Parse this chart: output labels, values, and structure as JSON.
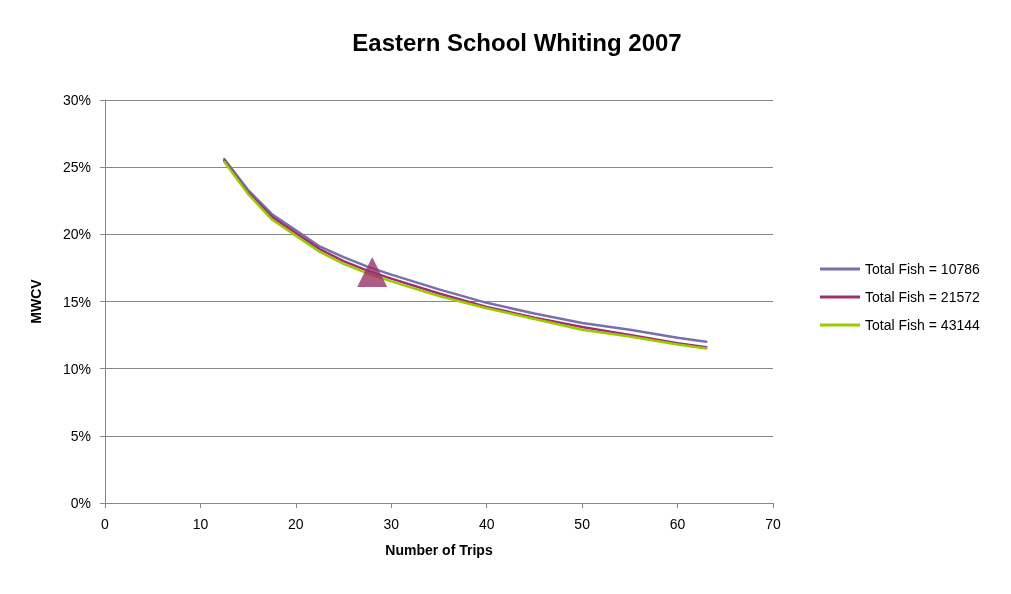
{
  "chart_data": {
    "type": "line",
    "title": "Eastern School Whiting 2007",
    "xlabel": "Number of Trips",
    "ylabel": "MWCV",
    "x": [
      12.5,
      15,
      17.5,
      20,
      22.5,
      25,
      27.5,
      30,
      35,
      40,
      45,
      50,
      55,
      60,
      63
    ],
    "series": [
      {
        "name": "Total Fish = 10786",
        "color": "#7770b0",
        "values": [
          25.6,
          23.3,
          21.5,
          20.3,
          19.1,
          18.3,
          17.6,
          17.0,
          15.9,
          14.9,
          14.1,
          13.4,
          12.9,
          12.3,
          12.0
        ]
      },
      {
        "name": "Total Fish = 21572",
        "color": "#a0306a",
        "values": [
          25.5,
          23.1,
          21.3,
          20.1,
          18.9,
          18.0,
          17.3,
          16.7,
          15.6,
          14.6,
          13.8,
          13.1,
          12.5,
          11.9,
          11.6
        ]
      },
      {
        "name": "Total Fish = 43144",
        "color": "#99cc00",
        "values": [
          25.4,
          23.0,
          21.1,
          19.9,
          18.7,
          17.8,
          17.1,
          16.5,
          15.4,
          14.5,
          13.7,
          12.9,
          12.4,
          11.8,
          11.5
        ]
      },
      {
        "type": "scatter",
        "marker": "triangle",
        "color": "#993366",
        "x": [
          28
        ],
        "values": [
          17.2
        ]
      }
    ],
    "xlim": [
      0,
      70
    ],
    "xticks": [
      0,
      10,
      20,
      30,
      40,
      50,
      60,
      70
    ],
    "ylim": [
      0,
      30
    ],
    "yticks": [
      {
        "value": 0,
        "label": "0%"
      },
      {
        "value": 5,
        "label": "5%"
      },
      {
        "value": 10,
        "label": "10%"
      },
      {
        "value": 15,
        "label": "15%"
      },
      {
        "value": 20,
        "label": "20%"
      },
      {
        "value": 25,
        "label": "25%"
      },
      {
        "value": 30,
        "label": "30%"
      }
    ],
    "grid": "y",
    "legend": "right",
    "marker": "none",
    "line_style": "solid"
  }
}
